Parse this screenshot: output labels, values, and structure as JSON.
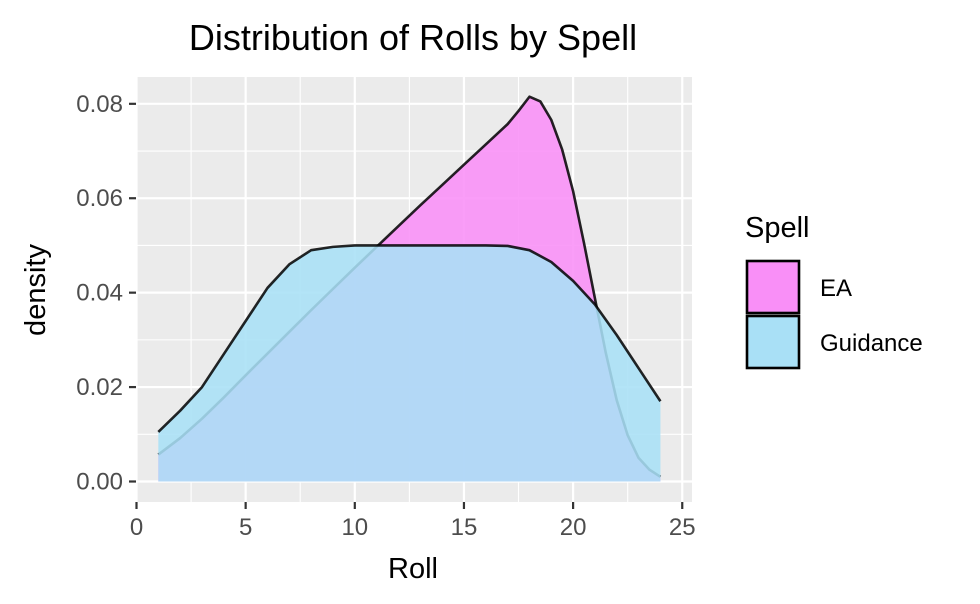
{
  "chart_data": {
    "type": "area",
    "title": "Distribution of Rolls by Spell",
    "xlabel": "Roll",
    "ylabel": "density",
    "xlim": [
      0,
      25
    ],
    "ylim": [
      0,
      0.08
    ],
    "x_ticks": [
      0,
      5,
      10,
      15,
      20,
      25
    ],
    "x_tick_labels": [
      "0",
      "5",
      "10",
      "15",
      "20",
      "25"
    ],
    "y_ticks": [
      0,
      0.02,
      0.04,
      0.06,
      0.08
    ],
    "y_tick_labels": [
      "0.00",
      "0.02",
      "0.04",
      "0.06",
      "0.08"
    ],
    "grid": true,
    "legend": {
      "title": "Spell",
      "placement": "right"
    },
    "series": [
      {
        "name": "EA",
        "color": "#f98ff7",
        "x": [
          1,
          2,
          3,
          4,
          5,
          6,
          7,
          8,
          9,
          10,
          11,
          12,
          13,
          14,
          15,
          16,
          17,
          17.5,
          18,
          18.5,
          19,
          19.5,
          20,
          20.5,
          21,
          21.5,
          22,
          22.5,
          23,
          23.5,
          24
        ],
        "y": [
          0.0057,
          0.0092,
          0.0133,
          0.0178,
          0.0225,
          0.0271,
          0.0317,
          0.0363,
          0.0408,
          0.0453,
          0.0497,
          0.0541,
          0.0585,
          0.0628,
          0.0671,
          0.0714,
          0.0757,
          0.0785,
          0.0815,
          0.0805,
          0.0766,
          0.0703,
          0.0615,
          0.0505,
          0.0388,
          0.0272,
          0.0172,
          0.0098,
          0.005,
          0.0025,
          0.001
        ]
      },
      {
        "name": "Guidance",
        "color": "#a9e0f6",
        "x": [
          1,
          2,
          3,
          4,
          5,
          6,
          7,
          8,
          9,
          10,
          11,
          12,
          13,
          14,
          15,
          16,
          17,
          18,
          19,
          20,
          21,
          22,
          23,
          24
        ],
        "y": [
          0.0105,
          0.015,
          0.02,
          0.027,
          0.034,
          0.041,
          0.046,
          0.049,
          0.0497,
          0.05,
          0.05,
          0.05,
          0.05,
          0.05,
          0.05,
          0.05,
          0.0499,
          0.049,
          0.0465,
          0.0425,
          0.0375,
          0.031,
          0.024,
          0.017
        ]
      }
    ]
  }
}
